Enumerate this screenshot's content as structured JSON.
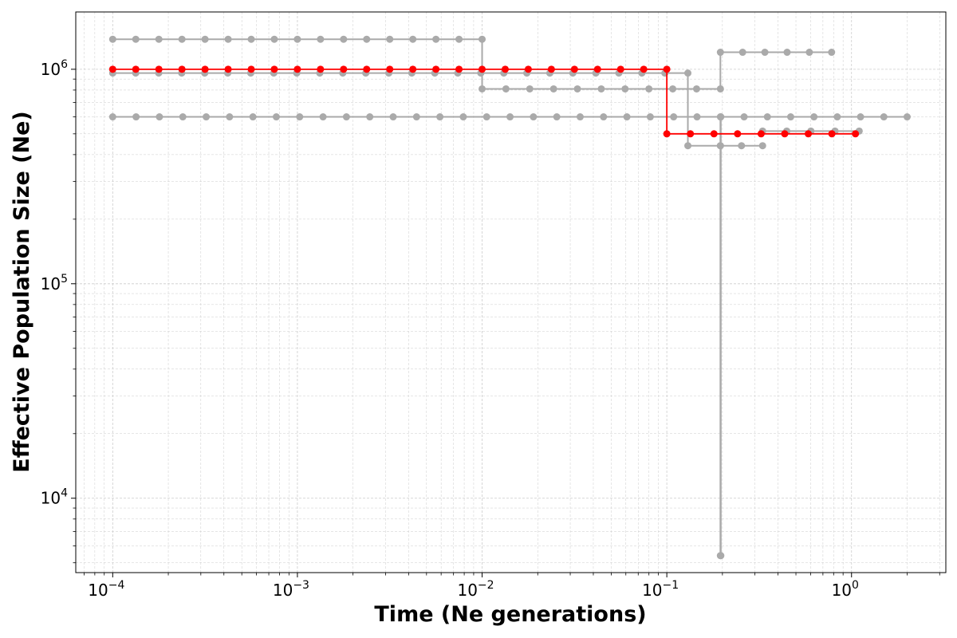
{
  "chart_data": {
    "type": "line",
    "xlabel": "Time (Ne generations)",
    "ylabel": "Effective Population Size (Ne)",
    "x_scale": "log",
    "y_scale": "log",
    "xlim": [
      6.31e-05,
      3.24
    ],
    "ylim": [
      4500,
      1850000
    ],
    "grid": true,
    "x_ticks": [
      {
        "base": "10",
        "exp": "−4",
        "value": 0.0001
      },
      {
        "base": "10",
        "exp": "−3",
        "value": 0.001
      },
      {
        "base": "10",
        "exp": "−2",
        "value": 0.01
      },
      {
        "base": "10",
        "exp": "−1",
        "value": 0.1
      },
      {
        "base": "10",
        "exp": "0",
        "value": 1
      }
    ],
    "y_ticks": [
      {
        "base": "10",
        "exp": "4",
        "value": 10000
      },
      {
        "base": "10",
        "exp": "5",
        "value": 100000
      },
      {
        "base": "10",
        "exp": "6",
        "value": 1000000
      }
    ],
    "colors": {
      "highlight": "#ff0000",
      "background": "#aaaaaa",
      "grid": "#cccccc"
    },
    "series": [
      {
        "style": "background",
        "steps": [
          {
            "t": [
              0.0001,
              0.01
            ],
            "ne": 1380000
          },
          {
            "t": [
              0.01,
              0.195
            ],
            "ne": 810000
          },
          {
            "t": [
              0.195,
              0.78
            ],
            "ne": 1200000
          }
        ]
      },
      {
        "style": "background",
        "steps": [
          {
            "t": [
              0.0001,
              0.13
            ],
            "ne": 960000
          },
          {
            "t": [
              0.13,
              0.195
            ],
            "ne": 440000
          },
          {
            "t": [
              0.195,
              0.33
            ],
            "ne": 440000
          }
        ]
      },
      {
        "style": "background",
        "steps": [
          {
            "t": [
              0.0001,
              0.195
            ],
            "ne": 600000
          },
          {
            "t": [
              0.195,
              0.196
            ],
            "ne": 5400
          },
          {
            "t": [
              0.196,
              2.0
            ],
            "ne": 600000
          }
        ]
      },
      {
        "style": "background",
        "steps": [
          {
            "t": [
              0.33,
              1.1
            ],
            "ne": 515000
          }
        ]
      },
      {
        "style": "highlight",
        "steps": [
          {
            "t": [
              0.0001,
              0.1
            ],
            "ne": 1000000
          },
          {
            "t": [
              0.1,
              1.05
            ],
            "ne": 500000
          }
        ]
      }
    ]
  }
}
